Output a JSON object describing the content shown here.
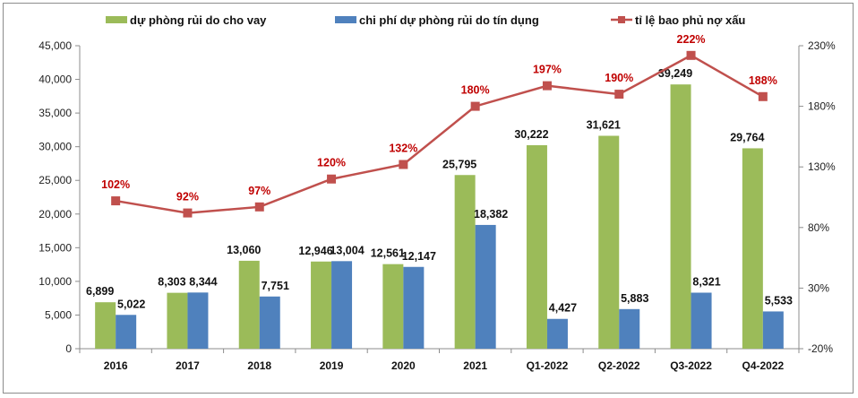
{
  "chart_data": {
    "type": "bar",
    "categories": [
      "2016",
      "2017",
      "2018",
      "2019",
      "2020",
      "2021",
      "Q1-2022",
      "Q2-2022",
      "Q3-2022",
      "Q4-2022"
    ],
    "series": [
      {
        "name": "dự phòng rủi do cho vay",
        "kind": "bar",
        "axis": "left",
        "color": "#9BBB59",
        "values": [
          6899,
          8303,
          13060,
          12946,
          12561,
          25795,
          30222,
          31621,
          39249,
          29764
        ],
        "labels": [
          "6,899",
          "8,303",
          "13,060",
          "12,946",
          "12,561",
          "25,795",
          "30,222",
          "31,621",
          "39,249",
          "29,764"
        ]
      },
      {
        "name": "chi phí dự phòng rủi do tín dụng",
        "kind": "bar",
        "axis": "left",
        "color": "#4F81BD",
        "values": [
          5022,
          8344,
          7751,
          13004,
          12147,
          18382,
          4427,
          5883,
          8321,
          5533
        ],
        "labels": [
          "5,022",
          "8,344",
          "7,751",
          "13,004",
          "12,147",
          "18,382",
          "4,427",
          "5,883",
          "8,321",
          "5,533"
        ]
      },
      {
        "name": "tỉ lệ bao phủ nợ xấu",
        "kind": "line",
        "axis": "right",
        "color": "#C0504D",
        "values": [
          102,
          92,
          97,
          120,
          132,
          180,
          197,
          190,
          222,
          188
        ],
        "labels": [
          "102%",
          "92%",
          "97%",
          "120%",
          "132%",
          "180%",
          "197%",
          "190%",
          "222%",
          "188%"
        ]
      }
    ],
    "y_left": {
      "min": 0,
      "max": 45000,
      "ticks": [
        0,
        5000,
        10000,
        15000,
        20000,
        25000,
        30000,
        35000,
        40000,
        45000
      ],
      "tick_labels": [
        "0",
        "5,000",
        "10,000",
        "15,000",
        "20,000",
        "25,000",
        "30,000",
        "35,000",
        "40,000",
        "45,000"
      ]
    },
    "y_right": {
      "min": -20,
      "max": 230,
      "ticks": [
        -20,
        30,
        80,
        130,
        180,
        230
      ],
      "tick_labels": [
        "-20%",
        "30%",
        "80%",
        "130%",
        "180%",
        "230%"
      ]
    },
    "grid": false,
    "legend": "top",
    "title": "",
    "xlabel": "",
    "ylabel": ""
  }
}
